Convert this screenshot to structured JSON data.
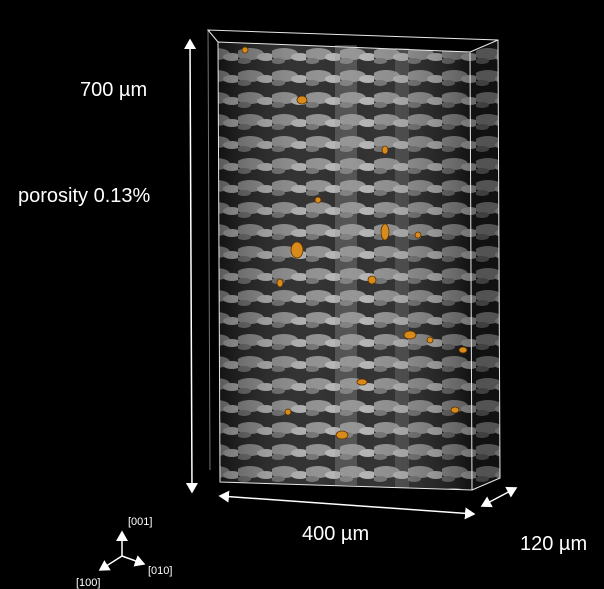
{
  "labels": {
    "height": "700 µm",
    "porosity": "porosity 0.13%",
    "width": "400 µm",
    "depth": "120 µm"
  },
  "axes": {
    "z": "[001]",
    "y": "[010]",
    "x": "[100]"
  }
}
